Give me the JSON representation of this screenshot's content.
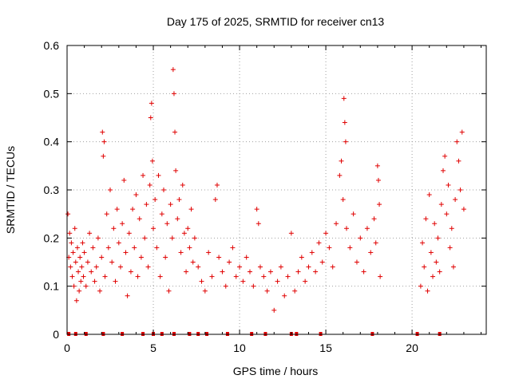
{
  "chart_data": {
    "type": "scatter",
    "title": "Day 175 of 2025, SRMTID for receiver cn13",
    "xlabel": "GPS time / hours",
    "ylabel": "SRMTID / TECUs",
    "xlim": [
      0,
      24.3
    ],
    "ylim": [
      0,
      0.6
    ],
    "xticks": [
      0,
      5,
      10,
      15,
      20
    ],
    "xtick_labels": [
      "0",
      "5",
      "10",
      "15",
      "20"
    ],
    "yticks": [
      0,
      0.1,
      0.2,
      0.3,
      0.4,
      0.5,
      0.6
    ],
    "ytick_labels": [
      "0",
      "0.1",
      "0.2",
      "0.3",
      "0.4",
      "0.5",
      "0.6"
    ],
    "grid": true,
    "marker": "plus",
    "color": "#e00000",
    "series": [
      {
        "name": "SRMTID",
        "points": [
          [
            0.05,
            0.25
          ],
          [
            0.1,
            0.16
          ],
          [
            0.15,
            0.21
          ],
          [
            0.2,
            0.14
          ],
          [
            0.25,
            0.19
          ],
          [
            0.3,
            0.12
          ],
          [
            0.35,
            0.17
          ],
          [
            0.4,
            0.1
          ],
          [
            0.45,
            0.22
          ],
          [
            0.5,
            0.15
          ],
          [
            0.55,
            0.07
          ],
          [
            0.6,
            0.18
          ],
          [
            0.65,
            0.13
          ],
          [
            0.7,
            0.09
          ],
          [
            0.75,
            0.16
          ],
          [
            0.8,
            0.11
          ],
          [
            0.85,
            0.14
          ],
          [
            0.9,
            0.19
          ],
          [
            0.95,
            0.12
          ],
          [
            1.0,
            0.17
          ],
          [
            1.1,
            0.1
          ],
          [
            1.2,
            0.15
          ],
          [
            1.3,
            0.21
          ],
          [
            1.4,
            0.13
          ],
          [
            1.5,
            0.18
          ],
          [
            1.6,
            0.11
          ],
          [
            1.7,
            0.14
          ],
          [
            1.8,
            0.2
          ],
          [
            1.9,
            0.09
          ],
          [
            2.0,
            0.16
          ],
          [
            2.05,
            0.42
          ],
          [
            2.1,
            0.37
          ],
          [
            2.15,
            0.4
          ],
          [
            2.2,
            0.12
          ],
          [
            2.3,
            0.25
          ],
          [
            2.4,
            0.18
          ],
          [
            2.5,
            0.3
          ],
          [
            2.6,
            0.15
          ],
          [
            2.7,
            0.22
          ],
          [
            2.8,
            0.11
          ],
          [
            2.9,
            0.26
          ],
          [
            3.0,
            0.19
          ],
          [
            3.1,
            0.14
          ],
          [
            3.2,
            0.23
          ],
          [
            3.3,
            0.32
          ],
          [
            3.4,
            0.17
          ],
          [
            3.5,
            0.08
          ],
          [
            3.6,
            0.21
          ],
          [
            3.7,
            0.13
          ],
          [
            3.8,
            0.26
          ],
          [
            3.9,
            0.18
          ],
          [
            4.0,
            0.29
          ],
          [
            4.1,
            0.12
          ],
          [
            4.2,
            0.24
          ],
          [
            4.3,
            0.16
          ],
          [
            4.4,
            0.33
          ],
          [
            4.5,
            0.2
          ],
          [
            4.6,
            0.27
          ],
          [
            4.7,
            0.14
          ],
          [
            4.8,
            0.31
          ],
          [
            4.85,
            0.45
          ],
          [
            4.9,
            0.48
          ],
          [
            4.95,
            0.36
          ],
          [
            5.0,
            0.22
          ],
          [
            5.1,
            0.28
          ],
          [
            5.2,
            0.18
          ],
          [
            5.3,
            0.33
          ],
          [
            5.4,
            0.12
          ],
          [
            5.5,
            0.25
          ],
          [
            5.6,
            0.3
          ],
          [
            5.7,
            0.16
          ],
          [
            5.8,
            0.23
          ],
          [
            5.9,
            0.09
          ],
          [
            6.0,
            0.27
          ],
          [
            6.1,
            0.2
          ],
          [
            6.15,
            0.55
          ],
          [
            6.2,
            0.5
          ],
          [
            6.25,
            0.42
          ],
          [
            6.3,
            0.34
          ],
          [
            6.4,
            0.24
          ],
          [
            6.5,
            0.28
          ],
          [
            6.6,
            0.17
          ],
          [
            6.7,
            0.31
          ],
          [
            6.8,
            0.21
          ],
          [
            6.9,
            0.13
          ],
          [
            7.0,
            0.22
          ],
          [
            7.1,
            0.18
          ],
          [
            7.2,
            0.26
          ],
          [
            7.3,
            0.15
          ],
          [
            7.4,
            0.2
          ],
          [
            7.6,
            0.14
          ],
          [
            7.8,
            0.11
          ],
          [
            8.0,
            0.09
          ],
          [
            8.2,
            0.17
          ],
          [
            8.4,
            0.12
          ],
          [
            8.6,
            0.28
          ],
          [
            8.7,
            0.31
          ],
          [
            8.8,
            0.16
          ],
          [
            9.0,
            0.13
          ],
          [
            9.2,
            0.1
          ],
          [
            9.4,
            0.15
          ],
          [
            9.6,
            0.18
          ],
          [
            9.8,
            0.12
          ],
          [
            10.0,
            0.14
          ],
          [
            10.2,
            0.11
          ],
          [
            10.4,
            0.16
          ],
          [
            10.6,
            0.13
          ],
          [
            10.8,
            0.1
          ],
          [
            11.0,
            0.26
          ],
          [
            11.1,
            0.23
          ],
          [
            11.2,
            0.14
          ],
          [
            11.4,
            0.12
          ],
          [
            11.6,
            0.09
          ],
          [
            11.8,
            0.13
          ],
          [
            12.0,
            0.05
          ],
          [
            12.2,
            0.11
          ],
          [
            12.4,
            0.14
          ],
          [
            12.6,
            0.08
          ],
          [
            12.8,
            0.12
          ],
          [
            13.0,
            0.21
          ],
          [
            13.2,
            0.09
          ],
          [
            13.4,
            0.13
          ],
          [
            13.6,
            0.16
          ],
          [
            13.8,
            0.11
          ],
          [
            14.0,
            0.14
          ],
          [
            14.2,
            0.17
          ],
          [
            14.4,
            0.13
          ],
          [
            14.6,
            0.19
          ],
          [
            14.8,
            0.15
          ],
          [
            15.0,
            0.21
          ],
          [
            15.2,
            0.18
          ],
          [
            15.4,
            0.14
          ],
          [
            15.6,
            0.23
          ],
          [
            15.8,
            0.33
          ],
          [
            15.9,
            0.36
          ],
          [
            16.0,
            0.28
          ],
          [
            16.05,
            0.49
          ],
          [
            16.1,
            0.44
          ],
          [
            16.15,
            0.4
          ],
          [
            16.2,
            0.22
          ],
          [
            16.4,
            0.18
          ],
          [
            16.6,
            0.25
          ],
          [
            16.8,
            0.15
          ],
          [
            17.0,
            0.2
          ],
          [
            17.2,
            0.13
          ],
          [
            17.4,
            0.22
          ],
          [
            17.6,
            0.17
          ],
          [
            17.8,
            0.24
          ],
          [
            17.9,
            0.19
          ],
          [
            18.0,
            0.35
          ],
          [
            18.05,
            0.32
          ],
          [
            18.1,
            0.27
          ],
          [
            18.15,
            0.12
          ],
          [
            20.5,
            0.1
          ],
          [
            20.6,
            0.19
          ],
          [
            20.7,
            0.14
          ],
          [
            20.8,
            0.24
          ],
          [
            20.9,
            0.09
          ],
          [
            21.0,
            0.29
          ],
          [
            21.1,
            0.17
          ],
          [
            21.2,
            0.12
          ],
          [
            21.3,
            0.23
          ],
          [
            21.4,
            0.15
          ],
          [
            21.5,
            0.2
          ],
          [
            21.6,
            0.13
          ],
          [
            21.7,
            0.27
          ],
          [
            21.8,
            0.34
          ],
          [
            21.9,
            0.37
          ],
          [
            22.0,
            0.25
          ],
          [
            22.1,
            0.31
          ],
          [
            22.2,
            0.18
          ],
          [
            22.3,
            0.22
          ],
          [
            22.4,
            0.14
          ],
          [
            22.5,
            0.28
          ],
          [
            22.6,
            0.4
          ],
          [
            22.7,
            0.36
          ],
          [
            22.8,
            0.3
          ],
          [
            22.9,
            0.42
          ],
          [
            23.0,
            0.26
          ]
        ]
      }
    ],
    "zero_markers_x": [
      0.1,
      0.5,
      1.1,
      2.1,
      3.2,
      4.4,
      5.0,
      5.5,
      6.2,
      7.1,
      7.6,
      8.1,
      9.3,
      10.7,
      11.5,
      13.0,
      13.3,
      14.7,
      17.7,
      20.3,
      21.6
    ]
  }
}
